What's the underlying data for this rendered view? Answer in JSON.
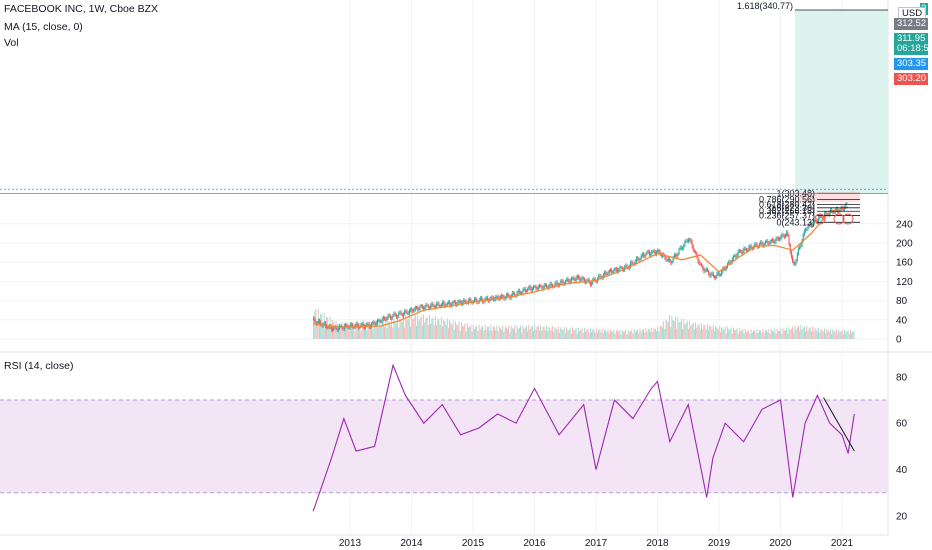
{
  "legend": {
    "symbol": "FACEBOOK INC, 1W, Cboe BZX",
    "ma": "MA (15, close, 0)",
    "vol": "Vol",
    "rsi": "RSI (14, close)"
  },
  "price_axis": {
    "currency_badge": "USD",
    "top_tick_partial": "3",
    "labels": [
      {
        "text": "312.52",
        "color": "#787b86"
      },
      {
        "text": "311.95",
        "color": "#26a69a"
      },
      {
        "text": "06:18:57",
        "color": "#26a69a"
      },
      {
        "text": "303.35",
        "color": "#2196f3"
      },
      {
        "text": "303.20",
        "color": "#ef5350"
      }
    ]
  },
  "colors": {
    "up": "#26a69a",
    "down": "#ef5350",
    "ma": "#f5873a",
    "rsi": "#9c27b0",
    "rsi_band": "#f3e5f5",
    "grid": "#f0f3fa",
    "fib_line": "#131722"
  },
  "chart_data": [
    {
      "type": "line",
      "title": "FACEBOOK INC, 1W, Cboe BZX",
      "ylim": [
        0,
        350
      ],
      "yticks": [
        0,
        40,
        80,
        120,
        160,
        200,
        240
      ],
      "x_ticks": [
        "2013",
        "2014",
        "2015",
        "2016",
        "2017",
        "2018",
        "2019",
        "2020",
        "2021"
      ],
      "series": [
        {
          "name": "MA (15, close, 0)",
          "x": [
            2012.4,
            2012.8,
            2013.2,
            2013.5,
            2013.8,
            2014.2,
            2014.6,
            2015.0,
            2015.5,
            2016.0,
            2016.5,
            2017.0,
            2017.5,
            2018.0,
            2018.4,
            2018.7,
            2019.0,
            2019.3,
            2019.6,
            2019.9,
            2020.2,
            2020.5,
            2020.8,
            2021.1
          ],
          "values": [
            32,
            24,
            26,
            27,
            38,
            60,
            68,
            77,
            85,
            98,
            115,
            122,
            147,
            178,
            165,
            175,
            140,
            168,
            193,
            195,
            185,
            220,
            265,
            275
          ]
        },
        {
          "name": "close",
          "x": [
            2012.4,
            2012.7,
            2013.0,
            2013.3,
            2013.6,
            2013.9,
            2014.1,
            2014.5,
            2014.9,
            2015.2,
            2015.6,
            2015.9,
            2016.3,
            2016.7,
            2016.9,
            2017.2,
            2017.5,
            2017.8,
            2018.0,
            2018.2,
            2018.5,
            2018.7,
            2018.9,
            2019.0,
            2019.3,
            2019.6,
            2019.9,
            2020.1,
            2020.2,
            2020.4,
            2020.6,
            2020.8,
            2021.0,
            2021.2
          ],
          "values": [
            38,
            22,
            27,
            28,
            45,
            55,
            65,
            72,
            78,
            82,
            90,
            105,
            112,
            128,
            117,
            140,
            150,
            178,
            182,
            160,
            210,
            150,
            130,
            135,
            180,
            195,
            205,
            220,
            150,
            230,
            250,
            265,
            270,
            311.95
          ]
        }
      ]
    },
    {
      "type": "bar",
      "title": "Vol",
      "x": [
        2012.4,
        2012.8,
        2013.2,
        2013.6,
        2014.0,
        2014.5,
        2015.0,
        2015.5,
        2016.0,
        2016.5,
        2017.0,
        2017.5,
        2018.0,
        2018.2,
        2018.6,
        2019.0,
        2019.5,
        2020.0,
        2020.3,
        2020.7,
        2021.0,
        2021.2
      ],
      "values": [
        70,
        35,
        35,
        40,
        55,
        45,
        30,
        28,
        30,
        25,
        22,
        20,
        25,
        52,
        35,
        28,
        20,
        22,
        30,
        22,
        20,
        18
      ]
    },
    {
      "type": "line",
      "title": "RSI (14, close)",
      "ylim": [
        15,
        88
      ],
      "yticks": [
        20,
        40,
        60,
        80
      ],
      "bands": [
        30,
        70
      ],
      "series": [
        {
          "name": "RSI (14, close)",
          "x": [
            2012.4,
            2012.7,
            2012.9,
            2013.1,
            2013.4,
            2013.7,
            2013.9,
            2014.2,
            2014.5,
            2014.8,
            2015.1,
            2015.4,
            2015.7,
            2016.0,
            2016.4,
            2016.8,
            2017.0,
            2017.3,
            2017.6,
            2017.9,
            2018.0,
            2018.2,
            2018.5,
            2018.8,
            2018.9,
            2019.1,
            2019.4,
            2019.7,
            2020.0,
            2020.2,
            2020.4,
            2020.6,
            2020.8,
            2021.0,
            2021.1,
            2021.2
          ],
          "values": [
            22,
            45,
            62,
            48,
            50,
            85,
            72,
            60,
            68,
            55,
            58,
            64,
            60,
            75,
            55,
            68,
            40,
            70,
            62,
            75,
            78,
            52,
            68,
            28,
            45,
            60,
            52,
            66,
            70,
            28,
            60,
            72,
            60,
            55,
            47,
            64
          ]
        }
      ]
    }
  ],
  "fib": {
    "top_label": "1.618(340.77)",
    "levels": [
      {
        "label": "1(303.48)",
        "value": 303.48
      },
      {
        "label": "0.786(290.56)",
        "value": 290.56
      },
      {
        "label": "0.618(280.42)",
        "value": 280.42
      },
      {
        "label": "0.5(273.30)",
        "value": 273.3
      },
      {
        "label": "0.382(266.18)",
        "value": 266.18
      },
      {
        "label": "0.236(257.37)",
        "value": 257.37
      },
      {
        "label": "0(243.13)",
        "value": 243.13
      }
    ]
  }
}
